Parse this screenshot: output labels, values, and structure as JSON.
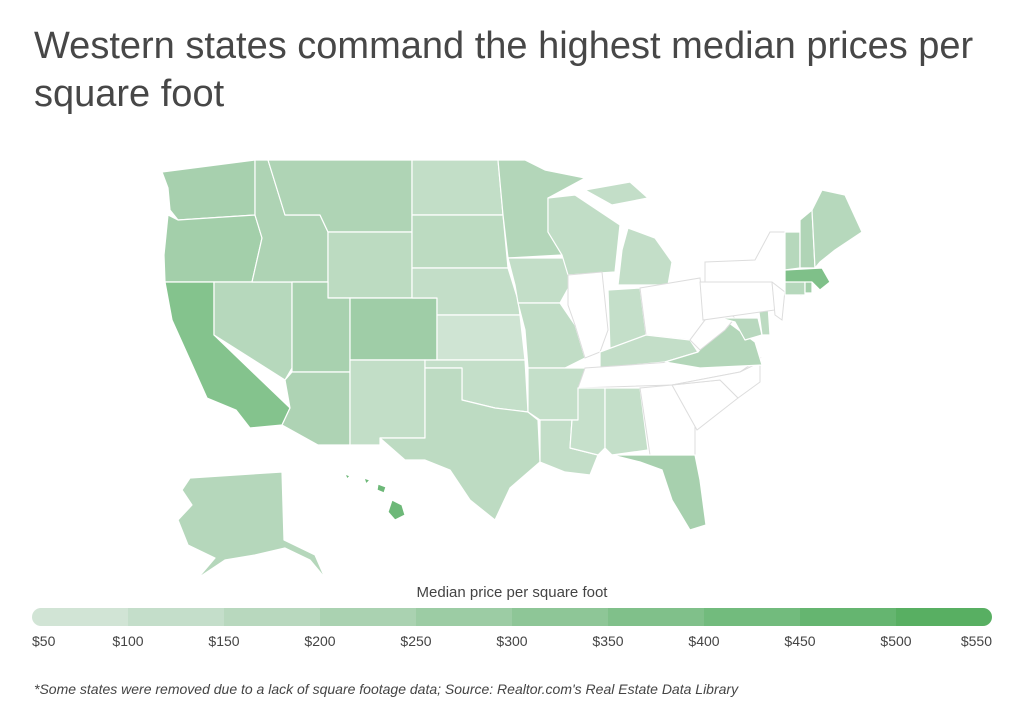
{
  "title": "Western states command the highest median prices per square foot",
  "legend": {
    "title": "Median price per square foot",
    "ticks": [
      "$50",
      "$100",
      "$150",
      "$200",
      "$250",
      "$300",
      "$350",
      "$400",
      "$450",
      "$500",
      "$550"
    ],
    "colors": [
      "#d1e4d5",
      "#c4deca",
      "#b8d8be",
      "#aad2b1",
      "#9ccca4",
      "#8ec697",
      "#80c08a",
      "#72bb7d",
      "#65b570",
      "#58af62"
    ]
  },
  "footnote": "*Some states were removed due to a lack of square footage data; Source: Realtor.com's Real Estate Data Library",
  "colors": {
    "no_data": "#ffffff",
    "no_data_border": "#dddddd",
    "state_border": "#ffffff"
  },
  "states": [
    {
      "name": "Washington",
      "color": "#a7d0ae"
    },
    {
      "name": "Oregon",
      "color": "#a3cfaa"
    },
    {
      "name": "California",
      "color": "#84c38d"
    },
    {
      "name": "Nevada",
      "color": "#b6d8bc"
    },
    {
      "name": "Idaho",
      "color": "#aed3b4"
    },
    {
      "name": "Montana",
      "color": "#afd4b5"
    },
    {
      "name": "Wyoming",
      "color": "#bcdbc1"
    },
    {
      "name": "Utah",
      "color": "#a8d1af"
    },
    {
      "name": "Colorado",
      "color": "#9fcda7"
    },
    {
      "name": "Arizona",
      "color": "#aed3b4"
    },
    {
      "name": "New Mexico",
      "color": "#c2dec7"
    },
    {
      "name": "North Dakota",
      "color": "#c2dec7"
    },
    {
      "name": "South Dakota",
      "color": "#bcdbc1"
    },
    {
      "name": "Nebraska",
      "color": "#c3dec8"
    },
    {
      "name": "Kansas",
      "color": "#cfe4d3"
    },
    {
      "name": "Oklahoma",
      "color": "#c4dfc9"
    },
    {
      "name": "Texas",
      "color": "#bddbc2"
    },
    {
      "name": "Minnesota",
      "color": "#b3d6b9"
    },
    {
      "name": "Iowa",
      "color": "#c3dec8"
    },
    {
      "name": "Missouri",
      "color": "#c1ddc6"
    },
    {
      "name": "Arkansas",
      "color": "#c4dfc9"
    },
    {
      "name": "Louisiana",
      "color": "#c3dec8"
    },
    {
      "name": "Wisconsin",
      "color": "#c1ddc6"
    },
    {
      "name": "Illinois",
      "color": "no-data"
    },
    {
      "name": "Michigan",
      "color": "#c3dec8"
    },
    {
      "name": "Indiana",
      "color": "#c4dfc9"
    },
    {
      "name": "Ohio",
      "color": "no-data"
    },
    {
      "name": "Kentucky",
      "color": "#c3dec8"
    },
    {
      "name": "Tennessee",
      "color": "no-data"
    },
    {
      "name": "Mississippi",
      "color": "#c6e0cb"
    },
    {
      "name": "Alabama",
      "color": "#c4dfc9"
    },
    {
      "name": "Georgia",
      "color": "no-data"
    },
    {
      "name": "Florida",
      "color": "#a7d0ae"
    },
    {
      "name": "South Carolina",
      "color": "no-data"
    },
    {
      "name": "North Carolina",
      "color": "no-data"
    },
    {
      "name": "Virginia",
      "color": "#b3d6b9"
    },
    {
      "name": "West Virginia",
      "color": "no-data"
    },
    {
      "name": "Maryland",
      "color": "#b8d8be"
    },
    {
      "name": "Delaware",
      "color": "#bddbc2"
    },
    {
      "name": "Pennsylvania",
      "color": "no-data"
    },
    {
      "name": "New Jersey",
      "color": "no-data"
    },
    {
      "name": "New York",
      "color": "no-data"
    },
    {
      "name": "Connecticut",
      "color": "#b6d8bc"
    },
    {
      "name": "Rhode Island",
      "color": "#a3cfaa"
    },
    {
      "name": "Massachusetts",
      "color": "#7fc089"
    },
    {
      "name": "Vermont",
      "color": "#b6d8bc"
    },
    {
      "name": "New Hampshire",
      "color": "#b0d4b6"
    },
    {
      "name": "Maine",
      "color": "#b6d8bc"
    },
    {
      "name": "Alaska",
      "color": "#b5d7bb"
    },
    {
      "name": "Hawaii",
      "color": "#6db878"
    }
  ]
}
